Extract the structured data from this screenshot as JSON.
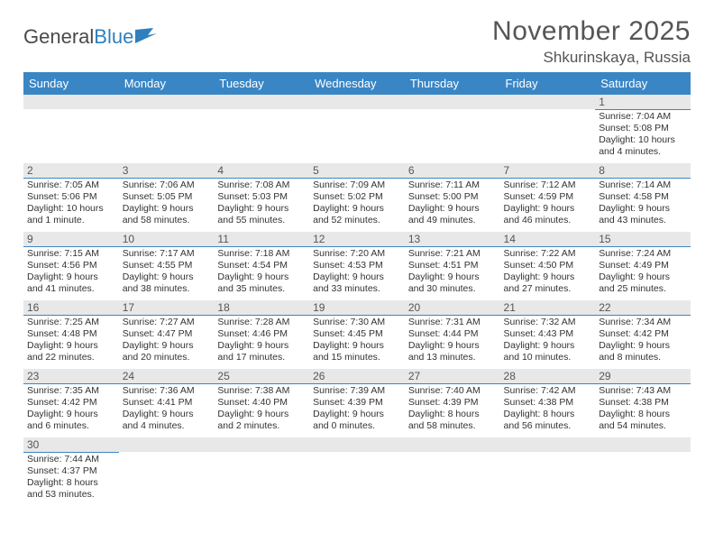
{
  "logo": {
    "text1": "General",
    "text2": "Blue"
  },
  "title": "November 2025",
  "location": "Shkurinskaya, Russia",
  "colors": {
    "header_bg": "#3a86c5",
    "header_text": "#ffffff",
    "daybar_bg": "#e8e8e8",
    "daybar_border": "#3a86c5",
    "text": "#333333",
    "title_text": "#555555"
  },
  "weekdays": [
    "Sunday",
    "Monday",
    "Tuesday",
    "Wednesday",
    "Thursday",
    "Friday",
    "Saturday"
  ],
  "weeks": [
    [
      null,
      null,
      null,
      null,
      null,
      null,
      {
        "n": "1",
        "r": "Sunrise: 7:04 AM",
        "s": "Sunset: 5:08 PM",
        "d": "Daylight: 10 hours and 4 minutes."
      }
    ],
    [
      {
        "n": "2",
        "r": "Sunrise: 7:05 AM",
        "s": "Sunset: 5:06 PM",
        "d": "Daylight: 10 hours and 1 minute."
      },
      {
        "n": "3",
        "r": "Sunrise: 7:06 AM",
        "s": "Sunset: 5:05 PM",
        "d": "Daylight: 9 hours and 58 minutes."
      },
      {
        "n": "4",
        "r": "Sunrise: 7:08 AM",
        "s": "Sunset: 5:03 PM",
        "d": "Daylight: 9 hours and 55 minutes."
      },
      {
        "n": "5",
        "r": "Sunrise: 7:09 AM",
        "s": "Sunset: 5:02 PM",
        "d": "Daylight: 9 hours and 52 minutes."
      },
      {
        "n": "6",
        "r": "Sunrise: 7:11 AM",
        "s": "Sunset: 5:00 PM",
        "d": "Daylight: 9 hours and 49 minutes."
      },
      {
        "n": "7",
        "r": "Sunrise: 7:12 AM",
        "s": "Sunset: 4:59 PM",
        "d": "Daylight: 9 hours and 46 minutes."
      },
      {
        "n": "8",
        "r": "Sunrise: 7:14 AM",
        "s": "Sunset: 4:58 PM",
        "d": "Daylight: 9 hours and 43 minutes."
      }
    ],
    [
      {
        "n": "9",
        "r": "Sunrise: 7:15 AM",
        "s": "Sunset: 4:56 PM",
        "d": "Daylight: 9 hours and 41 minutes."
      },
      {
        "n": "10",
        "r": "Sunrise: 7:17 AM",
        "s": "Sunset: 4:55 PM",
        "d": "Daylight: 9 hours and 38 minutes."
      },
      {
        "n": "11",
        "r": "Sunrise: 7:18 AM",
        "s": "Sunset: 4:54 PM",
        "d": "Daylight: 9 hours and 35 minutes."
      },
      {
        "n": "12",
        "r": "Sunrise: 7:20 AM",
        "s": "Sunset: 4:53 PM",
        "d": "Daylight: 9 hours and 33 minutes."
      },
      {
        "n": "13",
        "r": "Sunrise: 7:21 AM",
        "s": "Sunset: 4:51 PM",
        "d": "Daylight: 9 hours and 30 minutes."
      },
      {
        "n": "14",
        "r": "Sunrise: 7:22 AM",
        "s": "Sunset: 4:50 PM",
        "d": "Daylight: 9 hours and 27 minutes."
      },
      {
        "n": "15",
        "r": "Sunrise: 7:24 AM",
        "s": "Sunset: 4:49 PM",
        "d": "Daylight: 9 hours and 25 minutes."
      }
    ],
    [
      {
        "n": "16",
        "r": "Sunrise: 7:25 AM",
        "s": "Sunset: 4:48 PM",
        "d": "Daylight: 9 hours and 22 minutes."
      },
      {
        "n": "17",
        "r": "Sunrise: 7:27 AM",
        "s": "Sunset: 4:47 PM",
        "d": "Daylight: 9 hours and 20 minutes."
      },
      {
        "n": "18",
        "r": "Sunrise: 7:28 AM",
        "s": "Sunset: 4:46 PM",
        "d": "Daylight: 9 hours and 17 minutes."
      },
      {
        "n": "19",
        "r": "Sunrise: 7:30 AM",
        "s": "Sunset: 4:45 PM",
        "d": "Daylight: 9 hours and 15 minutes."
      },
      {
        "n": "20",
        "r": "Sunrise: 7:31 AM",
        "s": "Sunset: 4:44 PM",
        "d": "Daylight: 9 hours and 13 minutes."
      },
      {
        "n": "21",
        "r": "Sunrise: 7:32 AM",
        "s": "Sunset: 4:43 PM",
        "d": "Daylight: 9 hours and 10 minutes."
      },
      {
        "n": "22",
        "r": "Sunrise: 7:34 AM",
        "s": "Sunset: 4:42 PM",
        "d": "Daylight: 9 hours and 8 minutes."
      }
    ],
    [
      {
        "n": "23",
        "r": "Sunrise: 7:35 AM",
        "s": "Sunset: 4:42 PM",
        "d": "Daylight: 9 hours and 6 minutes."
      },
      {
        "n": "24",
        "r": "Sunrise: 7:36 AM",
        "s": "Sunset: 4:41 PM",
        "d": "Daylight: 9 hours and 4 minutes."
      },
      {
        "n": "25",
        "r": "Sunrise: 7:38 AM",
        "s": "Sunset: 4:40 PM",
        "d": "Daylight: 9 hours and 2 minutes."
      },
      {
        "n": "26",
        "r": "Sunrise: 7:39 AM",
        "s": "Sunset: 4:39 PM",
        "d": "Daylight: 9 hours and 0 minutes."
      },
      {
        "n": "27",
        "r": "Sunrise: 7:40 AM",
        "s": "Sunset: 4:39 PM",
        "d": "Daylight: 8 hours and 58 minutes."
      },
      {
        "n": "28",
        "r": "Sunrise: 7:42 AM",
        "s": "Sunset: 4:38 PM",
        "d": "Daylight: 8 hours and 56 minutes."
      },
      {
        "n": "29",
        "r": "Sunrise: 7:43 AM",
        "s": "Sunset: 4:38 PM",
        "d": "Daylight: 8 hours and 54 minutes."
      }
    ],
    [
      {
        "n": "30",
        "r": "Sunrise: 7:44 AM",
        "s": "Sunset: 4:37 PM",
        "d": "Daylight: 8 hours and 53 minutes."
      },
      null,
      null,
      null,
      null,
      null,
      null
    ]
  ]
}
